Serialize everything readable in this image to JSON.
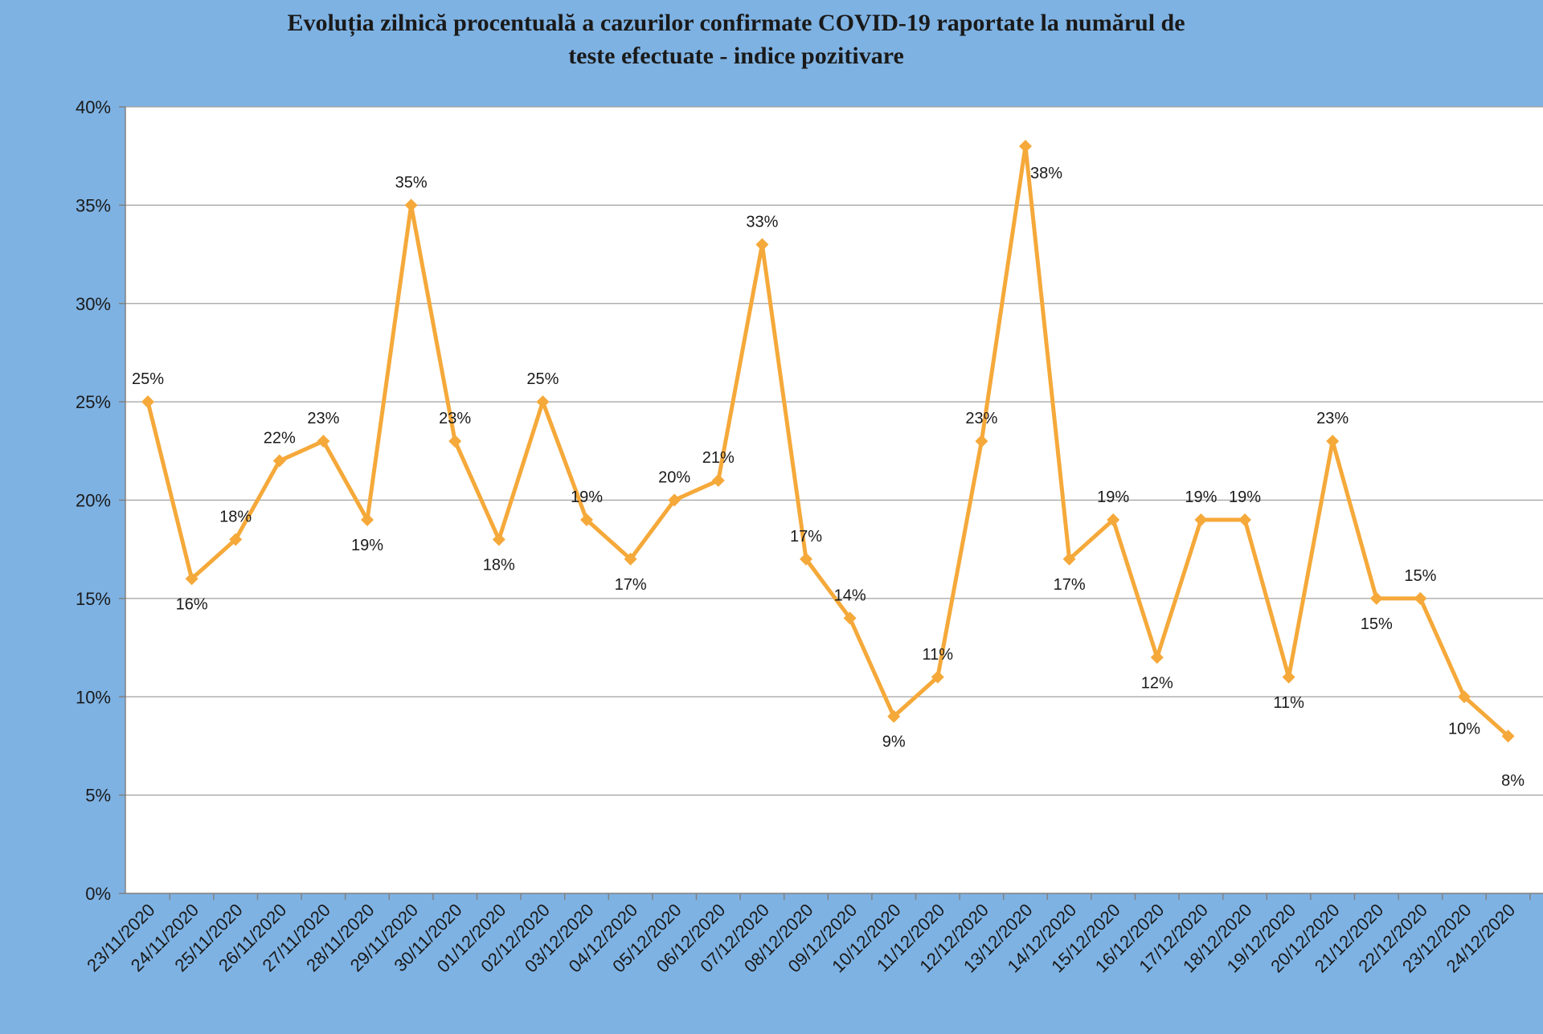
{
  "colors": {
    "background": "#7eb2e3",
    "plot_area": "#ffffff",
    "series_line": "#f5a93a",
    "gridline": "#a0a0a0"
  },
  "chart_data": {
    "type": "line",
    "title_lines": [
      "Evoluția zilnică procentuală a cazurilor confirmate COVID-19 raportate la numărul de",
      "teste efectuate - indice pozitivare"
    ],
    "xlabel": "",
    "ylabel": "",
    "ylim": [
      0,
      40
    ],
    "ytick_values": [
      0,
      5,
      10,
      15,
      20,
      25,
      30,
      35,
      40
    ],
    "ytick_labels": [
      "0%",
      "5%",
      "10%",
      "15%",
      "20%",
      "25%",
      "30%",
      "35%",
      "40%"
    ],
    "grid": true,
    "legend": "none",
    "categories": [
      "23/11/2020",
      "24/11/2020",
      "25/11/2020",
      "26/11/2020",
      "27/11/2020",
      "28/11/2020",
      "29/11/2020",
      "30/11/2020",
      "01/12/2020",
      "02/12/2020",
      "03/12/2020",
      "04/12/2020",
      "05/12/2020",
      "06/12/2020",
      "07/12/2020",
      "08/12/2020",
      "09/12/2020",
      "10/12/2020",
      "11/12/2020",
      "12/12/2020",
      "13/12/2020",
      "14/12/2020",
      "15/12/2020",
      "16/12/2020",
      "17/12/2020",
      "18/12/2020",
      "19/12/2020",
      "20/12/2020",
      "21/12/2020",
      "22/12/2020",
      "23/12/2020",
      "24/12/2020"
    ],
    "values": [
      25,
      16,
      18,
      22,
      23,
      19,
      35,
      23,
      18,
      25,
      19,
      17,
      20,
      21,
      33,
      17,
      14,
      9,
      11,
      23,
      38,
      17,
      19,
      12,
      19,
      19,
      11,
      23,
      15,
      15,
      10,
      8
    ],
    "data_labels": [
      "25%",
      "16%",
      "18%",
      "22%",
      "23%",
      "19%",
      "35%",
      "23%",
      "18%",
      "25%",
      "19%",
      "17%",
      "20%",
      "21%",
      "33%",
      "17%",
      "14%",
      "9%",
      "11%",
      "23%",
      "38%",
      "17%",
      "19%",
      "12%",
      "19%",
      "19%",
      "11%",
      "23%",
      "15%",
      "15%",
      "10%",
      "8%"
    ]
  }
}
